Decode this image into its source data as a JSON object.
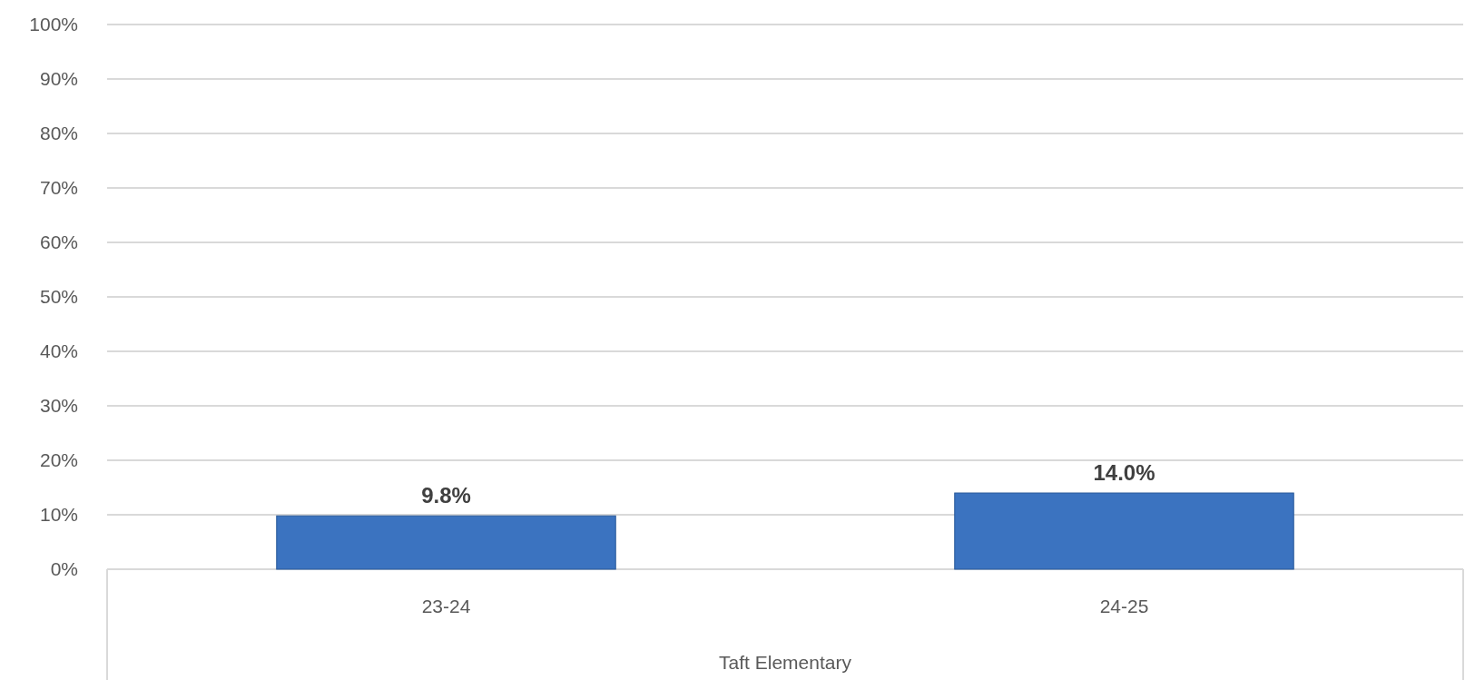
{
  "chart_data": {
    "type": "bar",
    "categories": [
      "23-24",
      "24-25"
    ],
    "values": [
      9.8,
      14.0
    ],
    "value_labels": [
      "9.8%",
      "14.0%"
    ],
    "color": "#3b73c0",
    "xlabel": "Taft Elementary",
    "ylim": [
      0,
      100
    ],
    "yticks": [
      {
        "value": 0,
        "label": "0%"
      },
      {
        "value": 10,
        "label": "10%"
      },
      {
        "value": 20,
        "label": "20%"
      },
      {
        "value": 30,
        "label": "30%"
      },
      {
        "value": 40,
        "label": "40%"
      },
      {
        "value": 50,
        "label": "50%"
      },
      {
        "value": 60,
        "label": "60%"
      },
      {
        "value": 70,
        "label": "70%"
      },
      {
        "value": 80,
        "label": "80%"
      },
      {
        "value": 90,
        "label": "90%"
      },
      {
        "value": 100,
        "label": "100%"
      }
    ],
    "grid": "y"
  }
}
